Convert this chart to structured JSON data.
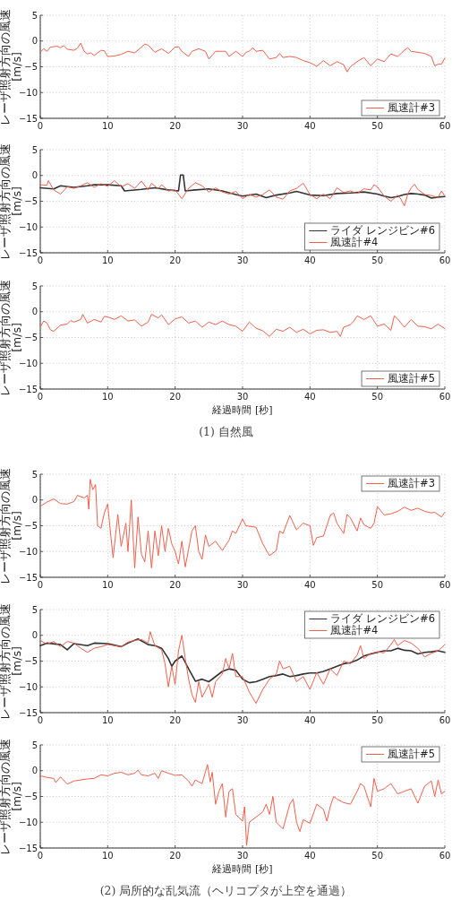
{
  "chart_data": [
    {
      "type": "line",
      "ylabel": "レーザ照射方向の風速 [m/s]",
      "xlim": [
        0,
        60
      ],
      "ylim": [
        -15,
        5
      ],
      "xticks": [
        0,
        10,
        20,
        30,
        40,
        50,
        60
      ],
      "yticks": [
        -15,
        -10,
        -5,
        0,
        5
      ],
      "grid": true,
      "legend": "bottom right",
      "series": [
        {
          "name": "風速計#3",
          "color": "#f0604d",
          "x": [
            0,
            0.5,
            1,
            1.5,
            2.5,
            3,
            3.5,
            4,
            5,
            5.5,
            6,
            6.5,
            7,
            7.5,
            8,
            9,
            9.5,
            10,
            11,
            12,
            13,
            14,
            15,
            15.5,
            16,
            17,
            18,
            19,
            20,
            20.5,
            21,
            22,
            22.5,
            23.5,
            24.5,
            25,
            26,
            27,
            27.5,
            28,
            28.5,
            29,
            30,
            30.5,
            31,
            31.5,
            32,
            33,
            34,
            35,
            35.5,
            36,
            37,
            38,
            39,
            40,
            41,
            42,
            43,
            44,
            45,
            45.5,
            46,
            47,
            48,
            49,
            50,
            51,
            52,
            53,
            54,
            54.5,
            55,
            56,
            57,
            58,
            58.5,
            59,
            59.5,
            60
          ],
          "values": [
            -2.2,
            -1.5,
            -2.0,
            -1.2,
            -1.0,
            -1.3,
            -0.9,
            -1.6,
            -1.8,
            -1.4,
            -0.4,
            -2.0,
            -2.5,
            -2.3,
            -2.8,
            -1.8,
            -1.9,
            -3.0,
            -2.9,
            -2.6,
            -2.0,
            -2.3,
            -1.2,
            -0.6,
            -0.8,
            -2.2,
            -1.5,
            -2.4,
            -1.2,
            -1.1,
            -2.0,
            -3.0,
            -2.0,
            -1.5,
            -2.0,
            -3.5,
            -2.0,
            -2.0,
            -2.0,
            -3.0,
            -2.5,
            -2.0,
            -3.0,
            -2.2,
            -2.0,
            -1.3,
            -2.0,
            -1.8,
            -3.5,
            -3.2,
            -2.4,
            -3.2,
            -3.0,
            -3.2,
            -3.8,
            -4.2,
            -4.9,
            -3.8,
            -4.8,
            -4.0,
            -4.6,
            -6.0,
            -5.0,
            -4.0,
            -3.2,
            -4.8,
            -3.5,
            -4.0,
            -2.5,
            -3.0,
            -1.8,
            -1.3,
            -2.0,
            -2.2,
            -2.4,
            -3.0,
            -4.8,
            -4.5,
            -4.5,
            -3.3
          ]
        }
      ]
    },
    {
      "type": "line",
      "ylabel": "レーザ照射方向の風速 [m/s]",
      "xlim": [
        0,
        60
      ],
      "ylim": [
        -15,
        5
      ],
      "xticks": [
        0,
        10,
        20,
        30,
        40,
        50,
        60
      ],
      "yticks": [
        -15,
        -10,
        -5,
        0,
        5
      ],
      "grid": true,
      "legend": "bottom right",
      "series": [
        {
          "name": "ライダ レンジビン#6",
          "color": "#333333",
          "x": [
            0,
            2,
            3,
            5,
            7,
            8,
            10,
            12,
            12.5,
            15,
            17,
            19,
            20.5,
            20.8,
            21.2,
            21.5,
            23,
            25,
            27,
            29,
            30,
            32,
            33.5,
            35,
            37,
            38,
            40,
            42,
            44,
            46,
            48,
            50,
            51,
            52,
            53,
            54,
            55,
            56,
            57,
            58,
            59,
            60
          ],
          "values": [
            -2.4,
            -2.6,
            -2.0,
            -2.3,
            -2.0,
            -1.8,
            -1.8,
            -2.0,
            -3.0,
            -2.7,
            -2.4,
            -2.8,
            -3.0,
            0.1,
            0.1,
            -3.0,
            -2.8,
            -2.6,
            -3.0,
            -3.7,
            -4.0,
            -3.6,
            -4.3,
            -3.8,
            -3.4,
            -3.1,
            -3.8,
            -3.9,
            -3.5,
            -3.4,
            -3.2,
            -3.6,
            -4.0,
            -4.3,
            -4.1,
            -3.7,
            -3.5,
            -3.6,
            -3.8,
            -4.4,
            -4.2,
            -4.1
          ]
        },
        {
          "name": "風速計#4",
          "color": "#f0604d",
          "x": [
            0,
            1,
            1.2,
            2,
            3,
            4,
            5,
            6,
            7,
            8,
            9,
            10,
            11,
            12,
            13,
            14,
            15,
            16,
            16.5,
            17.5,
            18,
            19,
            20,
            21,
            22,
            23,
            24,
            25,
            26,
            27,
            28,
            29,
            30,
            31,
            32,
            33,
            34,
            35,
            36,
            37,
            38,
            39,
            40,
            41,
            42,
            43,
            44,
            45,
            46,
            47,
            48,
            49,
            49.5,
            50,
            51,
            52,
            53,
            53.5,
            54,
            54.5,
            55,
            55.5,
            56,
            57,
            58,
            59,
            59.5,
            60
          ],
          "values": [
            -1.8,
            -1.9,
            -1.0,
            -2.8,
            -3.6,
            -2.2,
            -2.5,
            -2.0,
            -1.4,
            -2.3,
            -1.6,
            -2.1,
            -1.0,
            -2.2,
            -1.6,
            -2.5,
            -1.1,
            -2.8,
            -1.5,
            -2.6,
            -1.8,
            -3.0,
            -2.8,
            -4.5,
            -2.5,
            -1.4,
            -2.0,
            -3.2,
            -2.4,
            -3.2,
            -3.6,
            -3.1,
            -4.5,
            -3.7,
            -4.2,
            -3.7,
            -2.8,
            -4.2,
            -4.6,
            -3.0,
            -2.5,
            -1.5,
            -3.7,
            -4.5,
            -3.6,
            -4.5,
            -2.4,
            -3.3,
            -3.0,
            -3.5,
            -2.6,
            -2.8,
            -1.8,
            -2.2,
            -4.0,
            -5.0,
            -3.8,
            -4.6,
            -5.9,
            -3.6,
            -2.4,
            -1.7,
            -2.7,
            -3.7,
            -3.9,
            -4.3,
            -3.0,
            -4.0
          ]
        }
      ]
    },
    {
      "type": "line",
      "xlabel": "経過時間 [秒]",
      "ylabel": "レーザ照射方向の風速 [m/s]",
      "xlim": [
        0,
        60
      ],
      "ylim": [
        -15,
        5
      ],
      "xticks": [
        0,
        10,
        20,
        30,
        40,
        50,
        60
      ],
      "yticks": [
        -15,
        -10,
        -5,
        0,
        5
      ],
      "grid": true,
      "legend": "bottom right",
      "annotations": [
        "(1) 自然風"
      ],
      "series": [
        {
          "name": "風速計#5",
          "color": "#f0604d",
          "x": [
            0,
            0.5,
            1,
            1.5,
            2,
            3,
            4,
            4.5,
            5,
            6,
            6.3,
            7,
            8,
            9,
            9.5,
            10,
            11,
            12,
            13,
            14,
            15,
            16,
            16.5,
            17.5,
            18,
            19,
            20,
            21,
            22,
            23,
            24,
            25,
            26,
            27,
            28,
            29,
            30,
            31,
            32,
            33,
            34,
            35,
            36,
            37,
            38,
            39,
            40,
            41,
            42,
            43,
            44,
            44.5,
            45,
            46,
            46.5,
            47,
            48,
            49,
            50,
            51,
            52,
            52.5,
            53,
            54,
            55,
            56,
            57,
            58,
            59,
            60
          ],
          "values": [
            -3.0,
            -1.8,
            -2.2,
            -3.5,
            -3.8,
            -2.6,
            -2.4,
            -1.7,
            -2.0,
            -1.5,
            -0.5,
            -2.2,
            -1.5,
            -2.0,
            -0.9,
            -1.0,
            -1.5,
            -0.8,
            -1.8,
            -1.6,
            -2.8,
            -2.0,
            -0.5,
            -1.2,
            -0.6,
            -2.5,
            -1.4,
            -1.0,
            -2.2,
            -1.8,
            -3.0,
            -2.0,
            -2.5,
            -1.8,
            -2.5,
            -2.8,
            -3.8,
            -2.0,
            -3.2,
            -3.7,
            -4.8,
            -3.4,
            -3.8,
            -3.0,
            -4.0,
            -3.4,
            -4.3,
            -3.6,
            -3.5,
            -4.0,
            -3.8,
            -4.8,
            -3.0,
            -2.5,
            -1.8,
            -0.8,
            -1.5,
            -0.8,
            -2.8,
            -2.4,
            -3.6,
            -0.8,
            -1.4,
            -3.0,
            -1.5,
            -2.8,
            -2.9,
            -3.3,
            -2.4,
            -3.3
          ]
        }
      ]
    },
    {
      "type": "line",
      "ylabel": "レーザ照射方向の風速 [m/s]",
      "xlim": [
        0,
        60
      ],
      "ylim": [
        -15,
        5
      ],
      "xticks": [
        0,
        10,
        20,
        30,
        40,
        50,
        60
      ],
      "yticks": [
        -15,
        -10,
        -5,
        0,
        5
      ],
      "grid": true,
      "legend": "top right",
      "series": [
        {
          "name": "風速計#3",
          "color": "#f0604d",
          "x": [
            0,
            1,
            2,
            3,
            4,
            5,
            5.5,
            6.5,
            7,
            7.2,
            7.4,
            7.8,
            8.2,
            8.5,
            9,
            9.5,
            10,
            10.5,
            10.8,
            11.5,
            12,
            12.7,
            13,
            13.5,
            14,
            14.5,
            15,
            15.5,
            16,
            16.5,
            17,
            17.5,
            18,
            18.5,
            19,
            19.5,
            20,
            20.5,
            21,
            21.5,
            22,
            22.5,
            23,
            23.5,
            24,
            24.5,
            25,
            26,
            27,
            28,
            28.5,
            29,
            30,
            30.5,
            32,
            33,
            34,
            35,
            35.5,
            36,
            37,
            38,
            39,
            40,
            40.5,
            41,
            42,
            42.5,
            43,
            43.5,
            44,
            45,
            45.5,
            46,
            47,
            47.5,
            48,
            49,
            49.5,
            50,
            51,
            52,
            53,
            54,
            55,
            56,
            57,
            58,
            58.5,
            59.5,
            60
          ],
          "values": [
            -1.2,
            -0.4,
            0.2,
            -0.7,
            -0.8,
            -0.3,
            0.9,
            0.4,
            0.9,
            -1.8,
            4.0,
            2.0,
            3.0,
            -5.0,
            -5.5,
            -2.5,
            -0.8,
            -7.5,
            -11.2,
            -2.8,
            -9.0,
            -4.5,
            -10.0,
            0.0,
            -13.2,
            -3.3,
            -10.5,
            -12.0,
            -6.0,
            -13.2,
            -6.0,
            -10.8,
            -5.0,
            -10.0,
            -5.5,
            -8.5,
            -10.0,
            -12.4,
            -8.0,
            -13.0,
            -9.5,
            -6.0,
            -5.0,
            -10.0,
            -11.5,
            -6.8,
            -9.0,
            -8.0,
            -9.8,
            -7.8,
            -6.0,
            -6.5,
            -3.7,
            -5.0,
            -5.3,
            -8.5,
            -10.8,
            -9.8,
            -6.0,
            -6.5,
            -3.0,
            -5.8,
            -4.5,
            -5.0,
            -8.8,
            -7.3,
            -7.0,
            -5.0,
            -3.0,
            -2.5,
            -4.5,
            -6.5,
            -2.8,
            -3.5,
            -6.0,
            -3.5,
            -4.8,
            -5.5,
            -4.5,
            -1.3,
            -2.9,
            -2.7,
            -2.2,
            -1.4,
            -2.0,
            -1.6,
            -2.2,
            -2.5,
            -2.4,
            -3.3,
            -2.4
          ]
        }
      ]
    },
    {
      "type": "line",
      "ylabel": "レーザ照射方向の風速 [m/s]",
      "xlim": [
        0,
        60
      ],
      "ylim": [
        -15,
        5
      ],
      "xticks": [
        0,
        10,
        20,
        30,
        40,
        50,
        60
      ],
      "yticks": [
        -15,
        -10,
        -5,
        0,
        5
      ],
      "grid": true,
      "legend": "top right",
      "series": [
        {
          "name": "ライダ レンジビン#6",
          "color": "#333333",
          "x": [
            0,
            1,
            3,
            4,
            5,
            7,
            8,
            10,
            12,
            13,
            14.5,
            16,
            17,
            18,
            19,
            19.5,
            20,
            21,
            22,
            23,
            24,
            25,
            26,
            27,
            28,
            29,
            30,
            31,
            32,
            33,
            34,
            35,
            36,
            37,
            38,
            39,
            40,
            41,
            42,
            43,
            44,
            45,
            46,
            47,
            48,
            49,
            50,
            51,
            52,
            53,
            54,
            55,
            56,
            57,
            58,
            59,
            60
          ],
          "values": [
            -2.0,
            -1.5,
            -1.8,
            -2.8,
            -1.6,
            -2.0,
            -1.5,
            -1.6,
            -2.2,
            -1.5,
            -0.7,
            -1.8,
            -2.0,
            -2.5,
            -4.5,
            -6.0,
            -5.0,
            -4.0,
            -6.5,
            -8.9,
            -8.5,
            -9.0,
            -8.0,
            -7.0,
            -6.5,
            -6.8,
            -8.5,
            -9.2,
            -9.0,
            -8.5,
            -8.0,
            -7.8,
            -7.5,
            -8.0,
            -7.8,
            -7.5,
            -7.3,
            -7.3,
            -7.0,
            -6.5,
            -6.0,
            -5.5,
            -5.3,
            -4.8,
            -4.0,
            -3.6,
            -3.3,
            -3.0,
            -3.0,
            -2.5,
            -2.9,
            -3.0,
            -3.6,
            -3.3,
            -3.2,
            -3.0,
            -3.3
          ]
        },
        {
          "name": "風速計#4",
          "color": "#f0604d",
          "x": [
            0,
            1,
            2,
            3,
            4,
            5,
            6,
            7,
            8,
            9,
            10,
            11,
            12,
            13,
            14,
            15,
            16,
            16.3,
            17,
            18,
            18.5,
            19,
            19.5,
            20,
            20.5,
            21,
            21.5,
            22,
            22.5,
            23,
            23.5,
            24,
            25,
            25.5,
            26,
            27,
            27.5,
            28,
            28.5,
            29,
            30,
            31,
            32,
            33,
            34,
            35,
            35.5,
            36,
            37,
            38,
            39,
            40,
            41,
            42,
            43,
            44,
            45,
            46,
            47,
            47.5,
            48,
            49,
            50,
            51,
            52,
            52.5,
            53,
            54,
            55,
            56,
            57,
            58,
            59,
            60
          ],
          "values": [
            -1.0,
            -1.7,
            -1.2,
            -2.2,
            -1.2,
            -1.5,
            -2.5,
            -3.3,
            -2.5,
            -2.2,
            -1.8,
            -2.0,
            -2.2,
            -1.3,
            -1.0,
            -0.8,
            -1.5,
            0.7,
            -2.0,
            -2.8,
            -5.5,
            -10.0,
            -6.0,
            -9.5,
            -3.0,
            0.0,
            -4.5,
            -8.5,
            -11.5,
            -13.0,
            -9.0,
            -12.0,
            -9.5,
            -12.0,
            -9.0,
            -7.5,
            -4.5,
            -6.5,
            -3.5,
            -8.0,
            -8.0,
            -11.0,
            -13.2,
            -10.5,
            -8.5,
            -7.5,
            -5.0,
            -6.5,
            -6.0,
            -9.0,
            -8.0,
            -10.5,
            -7.2,
            -9.5,
            -6.5,
            -7.8,
            -5.0,
            -5.5,
            -3.8,
            -2.0,
            -4.5,
            -3.5,
            -3.2,
            -3.4,
            -1.8,
            -0.8,
            -2.0,
            -1.0,
            -1.5,
            -2.5,
            -4.2,
            -3.5,
            -3.0,
            -1.8
          ]
        }
      ]
    },
    {
      "type": "line",
      "xlabel": "経過時間 [秒]",
      "ylabel": "レーザ照射方向の風速 [m/s]",
      "xlim": [
        0,
        60
      ],
      "ylim": [
        -15,
        5
      ],
      "xticks": [
        0,
        10,
        20,
        30,
        40,
        50,
        60
      ],
      "yticks": [
        -15,
        -10,
        -5,
        0,
        5
      ],
      "grid": true,
      "legend": "top right",
      "annotations": [
        "(2) 局所的な乱気流（ヘリコプタが上空を通過）"
      ],
      "series": [
        {
          "name": "風速計#5",
          "color": "#f0604d",
          "x": [
            0,
            1,
            2,
            2.3,
            3,
            4,
            5,
            7,
            8,
            9,
            10,
            11,
            12,
            13,
            14,
            14.5,
            15,
            16,
            17,
            17.5,
            18,
            19,
            20,
            21,
            22,
            22.5,
            23,
            24,
            24.8,
            25.2,
            25.5,
            26,
            26.5,
            27,
            27.5,
            28,
            28.5,
            29,
            30,
            30.3,
            30.6,
            31,
            32,
            33,
            33.5,
            34,
            34.5,
            35,
            36,
            37,
            37.5,
            38,
            38.5,
            39,
            40,
            41,
            42,
            42.5,
            43,
            43.5,
            44,
            45,
            46,
            47,
            47.5,
            48,
            49,
            49.5,
            50,
            51,
            52,
            53,
            54,
            55,
            56,
            57,
            58,
            58.5,
            59,
            59.5,
            60
          ],
          "values": [
            -1.0,
            -1.3,
            -1.5,
            -2.3,
            -1.2,
            -2.6,
            -2.0,
            -1.6,
            -1.5,
            -0.8,
            -1.0,
            -0.5,
            -0.3,
            -0.8,
            -0.5,
            0.1,
            -0.8,
            -1.0,
            -0.5,
            -1.5,
            0.0,
            -0.5,
            -0.9,
            -0.8,
            -2.0,
            -3.0,
            -1.8,
            -2.5,
            1.2,
            -2.2,
            -0.3,
            -6.5,
            -4.0,
            -2.5,
            -9.0,
            -4.0,
            -3.5,
            -8.5,
            -9.8,
            -7.0,
            -14.5,
            -10.0,
            -9.0,
            -8.0,
            -6.5,
            -8.5,
            -5.0,
            -10.0,
            -11.3,
            -6.5,
            -5.5,
            -10.0,
            -11.8,
            -9.5,
            -10.2,
            -6.5,
            -7.5,
            -9.8,
            -7.0,
            -5.0,
            -5.5,
            -6.2,
            -6.5,
            -4.0,
            -2.5,
            -3.0,
            -7.0,
            -1.5,
            -4.0,
            -3.5,
            -2.5,
            -4.5,
            -4.0,
            -3.5,
            -6.3,
            -3.0,
            -2.0,
            -5.0,
            -1.8,
            -4.5,
            -4.0
          ]
        }
      ]
    }
  ]
}
